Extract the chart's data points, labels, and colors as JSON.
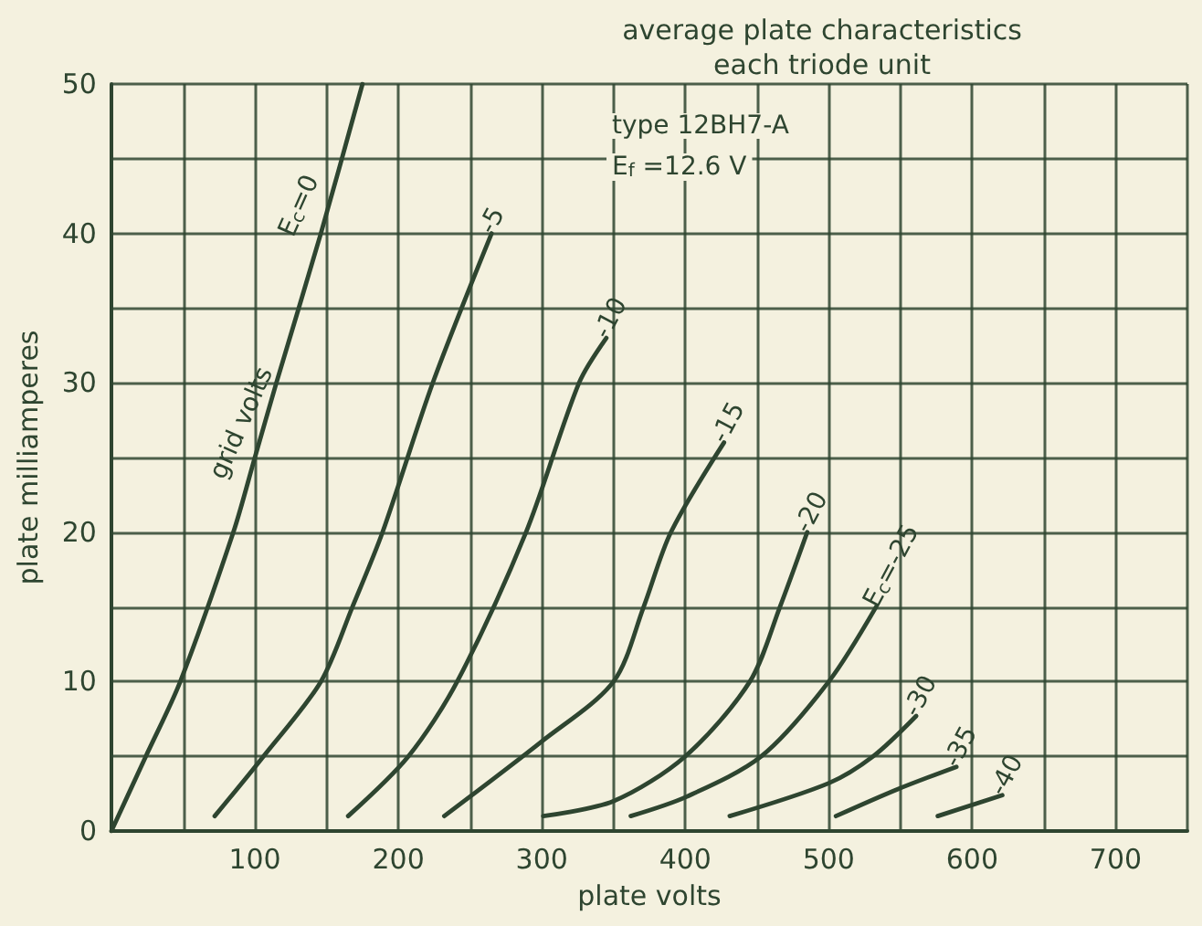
{
  "chart_data": {
    "type": "line",
    "title": "average plate characteristics",
    "subtitle": "each triode unit",
    "xlabel": "plate volts",
    "ylabel": "plate milliamperes",
    "xlim": [
      0,
      750
    ],
    "ylim": [
      0,
      50
    ],
    "xticks": [
      {
        "value": 0,
        "label": null
      },
      {
        "value": 50,
        "label": null
      },
      100,
      {
        "value": 150,
        "label": null
      },
      200,
      {
        "value": 250,
        "label": null
      },
      300,
      {
        "value": 350,
        "label": null
      },
      400,
      {
        "value": 450,
        "label": null
      },
      500,
      {
        "value": 550,
        "label": null
      },
      600,
      {
        "value": 650,
        "label": null
      },
      700,
      {
        "value": 750,
        "label": null
      }
    ],
    "yticks": [
      0,
      {
        "value": 5,
        "label": null
      },
      10,
      {
        "value": 15,
        "label": null
      },
      20,
      {
        "value": 25,
        "label": null
      },
      30,
      {
        "value": 35,
        "label": null
      },
      40,
      {
        "value": 45,
        "label": null
      },
      50
    ],
    "grid": true,
    "legend": false,
    "marker": "none",
    "line_style": "solid",
    "series": [
      {
        "name": "E$_{c}$=0",
        "color": "#2e4530",
        "x": [
          0,
          24,
          48,
          85,
          100,
          115,
          146,
          175
        ],
        "values": [
          0,
          5,
          10,
          20,
          25,
          30,
          40,
          50
        ]
      },
      {
        "name": "-5",
        "color": "#2e4530",
        "x": [
          72,
          106,
          146,
          168,
          189,
          224,
          265
        ],
        "values": [
          1,
          5,
          10,
          15,
          20,
          30,
          40
        ]
      },
      {
        "name": "-10",
        "color": "#2e4530",
        "x": [
          165,
          207,
          241,
          289,
          326,
          345
        ],
        "values": [
          1,
          5,
          10,
          20,
          30,
          33
        ]
      },
      {
        "name": "-15",
        "color": "#2e4530",
        "x": [
          232,
          300,
          350,
          371,
          390,
          427
        ],
        "values": [
          1,
          6,
          10,
          15,
          20,
          26
        ]
      },
      {
        "name": "-20",
        "color": "#2e4530",
        "x": [
          301,
          350,
          400,
          445,
          466,
          485
        ],
        "values": [
          1,
          2,
          5,
          10,
          15,
          20
        ]
      },
      {
        "name": "E$_{c}$=-25",
        "color": "#2e4530",
        "x": [
          362,
          401,
          453,
          500,
          533
        ],
        "values": [
          1,
          2.3,
          5,
          10,
          15
        ]
      },
      {
        "name": "-30",
        "color": "#2e4530",
        "x": [
          431,
          500,
          531,
          561
        ],
        "values": [
          1,
          3.2,
          5,
          7.7
        ]
      },
      {
        "name": "-35",
        "color": "#2e4530",
        "x": [
          505,
          548,
          589
        ],
        "values": [
          1,
          2.8,
          4.3
        ]
      },
      {
        "name": "-40",
        "color": "#2e4530",
        "x": [
          576,
          621
        ],
        "values": [
          1,
          2.4
        ]
      }
    ],
    "annotations": [
      "grid volts",
      "type 12BH7-A",
      "E$_{f}$ =12.6 V"
    ]
  }
}
